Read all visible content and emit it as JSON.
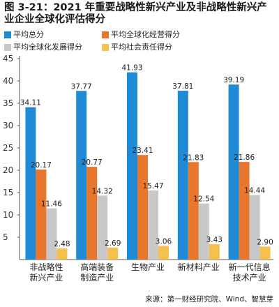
{
  "title": "图 3-21：2021 年重要战略性新兴产业及非战略性新兴产业企业全球化评估得分",
  "source": "来源：第一财经研究院、Wind、智慧芽",
  "chart_data": {
    "type": "bar",
    "title": "图 3-21：2021 年重要战略性新兴产业及非战略性新兴产业企业全球化评估得分",
    "categories": [
      "非战略性\n新兴产业",
      "高端装备\n制造产业",
      "生物产业",
      "新材料产业",
      "新一代信息\n技术产业"
    ],
    "series": [
      {
        "name": "平均总分",
        "color": "#1f8ad6",
        "values": [
          34.11,
          37.77,
          41.93,
          37.81,
          39.19
        ]
      },
      {
        "name": "平均全球化经营得分",
        "color": "#e8762c",
        "values": [
          20.17,
          20.77,
          23.41,
          21.83,
          21.86
        ]
      },
      {
        "name": "平均全球化发展得分",
        "color": "#c8c8c8",
        "values": [
          11.46,
          14.32,
          15.47,
          12.54,
          14.44
        ]
      },
      {
        "name": "平均社会责任得分",
        "color": "#f5c14c",
        "values": [
          2.48,
          2.69,
          3.06,
          3.43,
          2.9
        ]
      }
    ],
    "ylim": [
      0,
      45
    ],
    "yticks": [
      5,
      10,
      15,
      20,
      25,
      30,
      35,
      40,
      45
    ],
    "grid": false,
    "legend": "top"
  }
}
